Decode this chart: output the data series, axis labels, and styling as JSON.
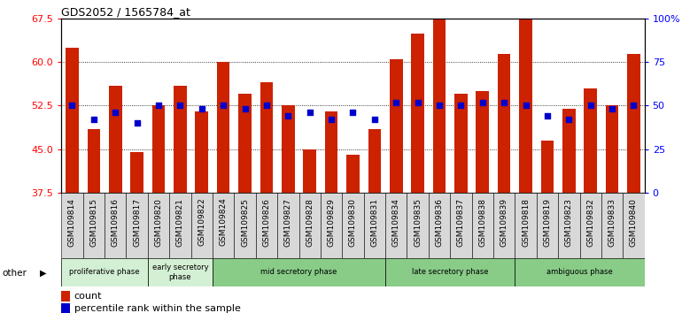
{
  "title": "GDS2052 / 1565784_at",
  "samples": [
    "GSM109814",
    "GSM109815",
    "GSM109816",
    "GSM109817",
    "GSM109820",
    "GSM109821",
    "GSM109822",
    "GSM109824",
    "GSM109825",
    "GSM109826",
    "GSM109827",
    "GSM109828",
    "GSM109829",
    "GSM109830",
    "GSM109831",
    "GSM109834",
    "GSM109835",
    "GSM109836",
    "GSM109837",
    "GSM109838",
    "GSM109839",
    "GSM109818",
    "GSM109819",
    "GSM109823",
    "GSM109832",
    "GSM109833",
    "GSM109840"
  ],
  "count_values": [
    62.5,
    48.5,
    56.0,
    44.5,
    52.5,
    56.0,
    51.5,
    60.0,
    54.5,
    56.5,
    52.5,
    45.0,
    51.5,
    44.0,
    48.5,
    60.5,
    65.0,
    67.5,
    54.5,
    55.0,
    61.5,
    67.5,
    46.5,
    52.0,
    55.5,
    52.5,
    61.5
  ],
  "percentile_values": [
    50,
    42,
    46,
    40,
    50,
    50,
    48,
    50,
    48,
    50,
    44,
    46,
    42,
    46,
    42,
    52,
    52,
    50,
    50,
    52,
    52,
    50,
    44,
    42,
    50,
    48,
    50
  ],
  "phases": [
    {
      "label": "proliferative phase",
      "start": 0,
      "end": 4,
      "color": "#d4f0d4"
    },
    {
      "label": "early secretory\nphase",
      "start": 4,
      "end": 7,
      "color": "#d4f0d4"
    },
    {
      "label": "mid secretory phase",
      "start": 7,
      "end": 15,
      "color": "#88cc88"
    },
    {
      "label": "late secretory phase",
      "start": 15,
      "end": 21,
      "color": "#88cc88"
    },
    {
      "label": "ambiguous phase",
      "start": 21,
      "end": 27,
      "color": "#88cc88"
    }
  ],
  "ylim_left": [
    37.5,
    67.5
  ],
  "yticks_left": [
    37.5,
    45.0,
    52.5,
    60.0,
    67.5
  ],
  "ylim_right": [
    0,
    100
  ],
  "yticks_right": [
    0,
    25,
    50,
    75,
    100
  ],
  "bar_color": "#cc2200",
  "dot_color": "#0000cc",
  "bg_color": "#ffffff",
  "tick_bg_color": "#d8d8d8",
  "count_label": "count",
  "percentile_label": "percentile rank within the sample",
  "other_label": "other"
}
